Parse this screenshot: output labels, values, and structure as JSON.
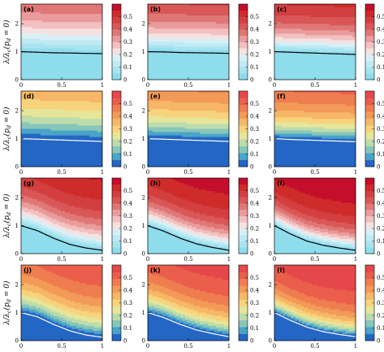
{
  "figure": {
    "x_label_text": "p",
    "x_label_sub": "d",
    "y_label_text": "λ/λ",
    "y_label_sub1": "c",
    "y_label_paren": "(p",
    "y_label_sub2": "d",
    "y_label_tail": " = 0)"
  },
  "colors": {
    "palette_a": [
      "#8fdcec",
      "#a7e4f0",
      "#bfeaf4",
      "#d7f0f6",
      "#f6e1e1",
      "#f2c0c0",
      "#ea9b9b",
      "#e07777",
      "#d95757",
      "#d33f3f",
      "#cf2b2b",
      "#c40e2b"
    ],
    "palette_b": [
      "#2466c4",
      "#4aa4c8",
      "#88c6ba",
      "#bcdcac",
      "#e6e69a",
      "#f8d37d",
      "#f6b766",
      "#f39a58",
      "#ef7d4f",
      "#ea5e4b",
      "#e5474a"
    ],
    "line_dark": "#000000",
    "line_light": "#ffffff"
  },
  "chart_data": [
    {
      "label": "(a)",
      "type": "heatmap",
      "palette": "a",
      "boundary": "dark",
      "curve": [
        1.0,
        0.98,
        0.96,
        0.95,
        0.94,
        0.93
      ],
      "steep": 1.0,
      "xlim": [
        0,
        1
      ],
      "ylim": [
        0,
        2.7
      ],
      "xticks": [
        "0",
        "0.5",
        "1"
      ],
      "yticks": [
        "0",
        "1",
        "2"
      ],
      "zlim": [
        0,
        0.6
      ],
      "cbar_ticks": [
        "0",
        "0.1",
        "0.2",
        "0.3",
        "0.4",
        "0.5"
      ]
    },
    {
      "label": "(b)",
      "type": "heatmap",
      "palette": "a",
      "boundary": "dark",
      "curve": [
        1.0,
        0.99,
        0.97,
        0.96,
        0.95,
        0.94
      ],
      "steep": 1.3,
      "xlim": [
        0,
        1
      ],
      "ylim": [
        0,
        2.7
      ],
      "xticks": [
        "0",
        "0.5",
        "1"
      ],
      "yticks": [
        "0",
        "1",
        "2"
      ],
      "zlim": [
        0,
        0.6
      ],
      "cbar_ticks": [
        "0",
        "0.1",
        "0.2",
        "0.3",
        "0.4",
        "0.5"
      ]
    },
    {
      "label": "(c)",
      "type": "heatmap",
      "palette": "a",
      "boundary": "dark",
      "curve": [
        1.0,
        0.98,
        0.96,
        0.94,
        0.92,
        0.9
      ],
      "steep": 1.7,
      "xlim": [
        0,
        1
      ],
      "ylim": [
        0,
        2.7
      ],
      "xticks": [
        "0",
        "0.5",
        "1"
      ],
      "yticks": [
        "0",
        "1",
        "2"
      ],
      "zlim": [
        0,
        0.6
      ],
      "cbar_ticks": [
        "0",
        "0.1",
        "0.2",
        "0.3",
        "0.4",
        "0.5"
      ]
    },
    {
      "label": "(d)",
      "type": "heatmap",
      "palette": "b",
      "boundary": "light",
      "curve": [
        1.0,
        0.98,
        0.96,
        0.94,
        0.92,
        0.9
      ],
      "steep": 0.9,
      "xlim": [
        0,
        1
      ],
      "ylim": [
        0,
        2.7
      ],
      "xticks": [
        "0",
        "0.5",
        "1"
      ],
      "yticks": [
        "0",
        "1",
        "2"
      ],
      "zlim": [
        0,
        0.6
      ],
      "cbar_ticks": [
        "0",
        "0.1",
        "0.2",
        "0.3",
        "0.4",
        "0.5"
      ]
    },
    {
      "label": "(e)",
      "type": "heatmap",
      "palette": "b",
      "boundary": "light",
      "curve": [
        1.0,
        0.98,
        0.96,
        0.94,
        0.92,
        0.9
      ],
      "steep": 1.2,
      "xlim": [
        0,
        1
      ],
      "ylim": [
        0,
        2.7
      ],
      "xticks": [
        "0",
        "0.5",
        "1"
      ],
      "yticks": [
        "0",
        "1",
        "2"
      ],
      "zlim": [
        0,
        0.6
      ],
      "cbar_ticks": [
        "0",
        "0.1",
        "0.2",
        "0.3",
        "0.4",
        "0.5"
      ]
    },
    {
      "label": "(f)",
      "type": "heatmap",
      "palette": "b",
      "boundary": "light",
      "curve": [
        1.0,
        0.97,
        0.95,
        0.93,
        0.91,
        0.89
      ],
      "steep": 1.6,
      "xlim": [
        0,
        1
      ],
      "ylim": [
        0,
        2.7
      ],
      "xticks": [
        "0",
        "0.5",
        "1"
      ],
      "yticks": [
        "0",
        "1",
        "2"
      ],
      "zlim": [
        0,
        0.6
      ],
      "cbar_ticks": [
        "0",
        "0.1",
        "0.2",
        "0.3",
        "0.4",
        "0.5"
      ]
    },
    {
      "label": "(g)",
      "type": "heatmap",
      "palette": "a",
      "boundary": "dark",
      "curve": [
        1.0,
        0.82,
        0.55,
        0.33,
        0.2,
        0.12
      ],
      "steep": 1.6,
      "xlim": [
        0,
        1
      ],
      "ylim": [
        0,
        2.7
      ],
      "xticks": [
        "0",
        "0.5",
        "1"
      ],
      "yticks": [
        "0",
        "1",
        "2"
      ],
      "zlim": [
        0,
        0.6
      ],
      "cbar_ticks": [
        "0",
        "0.1",
        "0.2",
        "0.3",
        "0.4",
        "0.5"
      ]
    },
    {
      "label": "(h)",
      "type": "heatmap",
      "palette": "a",
      "boundary": "dark",
      "curve": [
        1.0,
        0.8,
        0.55,
        0.35,
        0.22,
        0.12
      ],
      "steep": 2.0,
      "xlim": [
        0,
        1
      ],
      "ylim": [
        0,
        2.7
      ],
      "xticks": [
        "0",
        "0.5",
        "1"
      ],
      "yticks": [
        "0",
        "1",
        "2"
      ],
      "zlim": [
        0,
        0.6
      ],
      "cbar_ticks": [
        "0",
        "0.1",
        "0.2",
        "0.3",
        "0.4",
        "0.5"
      ]
    },
    {
      "label": "(i)",
      "type": "heatmap",
      "palette": "a",
      "boundary": "dark",
      "curve": [
        1.0,
        0.7,
        0.45,
        0.3,
        0.2,
        0.12
      ],
      "steep": 2.4,
      "xlim": [
        0,
        1
      ],
      "ylim": [
        0,
        2.7
      ],
      "xticks": [
        "0",
        "0.5",
        "1"
      ],
      "yticks": [
        "0",
        "1",
        "2"
      ],
      "zlim": [
        0,
        0.6
      ],
      "cbar_ticks": [
        "0",
        "0.1",
        "0.2",
        "0.3",
        "0.4",
        "0.5"
      ]
    },
    {
      "label": "(j)",
      "type": "heatmap",
      "palette": "b",
      "boundary": "light",
      "curve": [
        1.0,
        0.85,
        0.58,
        0.35,
        0.2,
        0.12
      ],
      "steep": 1.5,
      "xlim": [
        0,
        1
      ],
      "ylim": [
        0,
        2.7
      ],
      "xticks": [
        "0",
        "0.5",
        "1"
      ],
      "yticks": [
        "0",
        "1",
        "2"
      ],
      "zlim": [
        0,
        0.6
      ],
      "cbar_ticks": [
        "0",
        "0.1",
        "0.2",
        "0.3",
        "0.4",
        "0.5"
      ]
    },
    {
      "label": "(k)",
      "type": "heatmap",
      "palette": "b",
      "boundary": "light",
      "curve": [
        1.0,
        0.82,
        0.58,
        0.38,
        0.25,
        0.14
      ],
      "steep": 1.9,
      "xlim": [
        0,
        1
      ],
      "ylim": [
        0,
        2.7
      ],
      "xticks": [
        "0",
        "0.5",
        "1"
      ],
      "yticks": [
        "0",
        "1",
        "2"
      ],
      "zlim": [
        0,
        0.6
      ],
      "cbar_ticks": [
        "0",
        "0.1",
        "0.2",
        "0.3",
        "0.4",
        "0.5"
      ]
    },
    {
      "label": "(l)",
      "type": "heatmap",
      "palette": "b",
      "boundary": "light",
      "curve": [
        1.0,
        0.72,
        0.48,
        0.32,
        0.22,
        0.14
      ],
      "steep": 2.4,
      "xlim": [
        0,
        1
      ],
      "ylim": [
        0,
        2.7
      ],
      "xticks": [
        "0",
        "0.5",
        "1"
      ],
      "yticks": [
        "0",
        "1",
        "2"
      ],
      "zlim": [
        0,
        0.6
      ],
      "cbar_ticks": [
        "0",
        "0.1",
        "0.2",
        "0.3",
        "0.4",
        "0.5"
      ]
    }
  ]
}
